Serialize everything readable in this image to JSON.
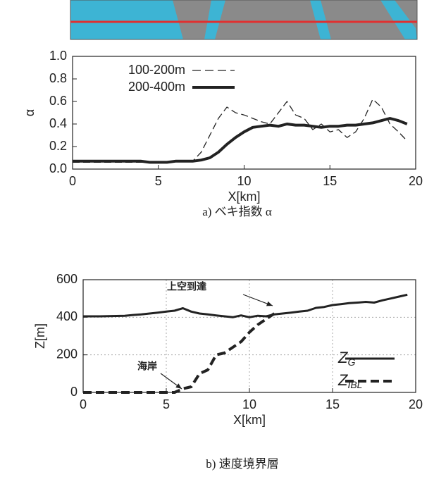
{
  "chart_data": [
    {
      "type": "line",
      "xlabel": "X[km]",
      "ylabel": "α",
      "caption": "a) ベキ指数 α",
      "x": [
        0,
        0.5,
        1,
        1.5,
        2,
        2.5,
        3,
        3.5,
        4,
        4.5,
        5,
        5.5,
        6,
        6.5,
        7,
        7.5,
        8,
        8.5,
        9,
        9.5,
        10,
        10.5,
        11,
        11.5,
        12,
        12.5,
        13,
        13.5,
        14,
        14.5,
        15,
        15.5,
        16,
        16.5,
        17,
        17.5,
        18,
        18.5,
        19,
        19.5
      ],
      "series": [
        {
          "name": "100-200m",
          "color": "#222222",
          "linestyle": "dashed",
          "values": [
            0.06,
            0.06,
            0.06,
            0.06,
            0.06,
            0.06,
            0.06,
            0.06,
            0.06,
            0.06,
            0.06,
            0.06,
            0.07,
            0.07,
            0.07,
            0.15,
            0.3,
            0.45,
            0.55,
            0.5,
            0.48,
            0.45,
            0.42,
            0.4,
            0.5,
            0.6,
            0.48,
            0.45,
            0.35,
            0.4,
            0.33,
            0.35,
            0.28,
            0.33,
            0.45,
            0.62,
            0.55,
            0.4,
            0.33,
            0.25
          ]
        },
        {
          "name": "200-400m",
          "color": "#222222",
          "linestyle": "solid",
          "values": [
            0.07,
            0.07,
            0.07,
            0.07,
            0.07,
            0.07,
            0.07,
            0.07,
            0.07,
            0.06,
            0.06,
            0.06,
            0.07,
            0.07,
            0.07,
            0.08,
            0.1,
            0.15,
            0.22,
            0.28,
            0.33,
            0.37,
            0.38,
            0.39,
            0.38,
            0.4,
            0.39,
            0.39,
            0.38,
            0.37,
            0.38,
            0.38,
            0.39,
            0.39,
            0.4,
            0.41,
            0.43,
            0.45,
            0.43,
            0.4
          ]
        }
      ],
      "xlim": [
        0,
        20
      ],
      "xticks": [
        0,
        5,
        10,
        15,
        20
      ],
      "ylim": [
        0,
        1
      ],
      "yticks": [
        {
          "value": 0,
          "label": "0.0"
        },
        {
          "value": 0.2,
          "label": "0.2"
        },
        {
          "value": 0.4,
          "label": "0.4"
        },
        {
          "value": 0.6,
          "label": "0.6"
        },
        {
          "value": 0.8,
          "label": "0.8"
        },
        {
          "value": 1,
          "label": "1.0"
        }
      ],
      "grid": false,
      "legend": "upper left"
    },
    {
      "type": "line",
      "xlabel": "X[km]",
      "ylabel": "Z[m]",
      "caption": "b) 速度境界層",
      "annotations": [
        "上空到達",
        "海岸"
      ],
      "x": [
        0,
        0.5,
        1,
        1.5,
        2,
        2.5,
        3,
        3.5,
        4,
        4.5,
        5,
        5.5,
        6,
        6.5,
        7,
        7.5,
        8,
        8.5,
        9,
        9.5,
        10,
        10.5,
        11,
        11.5,
        12,
        12.5,
        13,
        13.5,
        14,
        14.5,
        15,
        15.5,
        16,
        16.5,
        17,
        17.5,
        18,
        18.5,
        19,
        19.5
      ],
      "series": [
        {
          "name": "ZG",
          "color": "#222222",
          "linestyle": "solid",
          "values": [
            405,
            405,
            405,
            406,
            407,
            408,
            412,
            415,
            420,
            425,
            430,
            435,
            448,
            430,
            420,
            415,
            410,
            405,
            400,
            410,
            400,
            408,
            405,
            415,
            420,
            425,
            430,
            435,
            450,
            455,
            465,
            470,
            475,
            478,
            482,
            478,
            490,
            500,
            510,
            520
          ]
        },
        {
          "name": "ZIBL",
          "color": "#222222",
          "linestyle": "dashed",
          "values": [
            0,
            0,
            0,
            0,
            0,
            0,
            0,
            0,
            0,
            0,
            0,
            0,
            20,
            30,
            100,
            120,
            200,
            210,
            240,
            270,
            320,
            360,
            390,
            420,
            null,
            null,
            null,
            null,
            null,
            null,
            null,
            null,
            null,
            null,
            null,
            null,
            null,
            null,
            null,
            null
          ]
        }
      ],
      "xlim": [
        0,
        20
      ],
      "xticks": [
        0,
        5,
        10,
        15,
        20
      ],
      "ylim": [
        0,
        600
      ],
      "yticks": [
        0,
        200,
        400,
        600
      ],
      "grid": true,
      "legend": "lower right"
    }
  ]
}
